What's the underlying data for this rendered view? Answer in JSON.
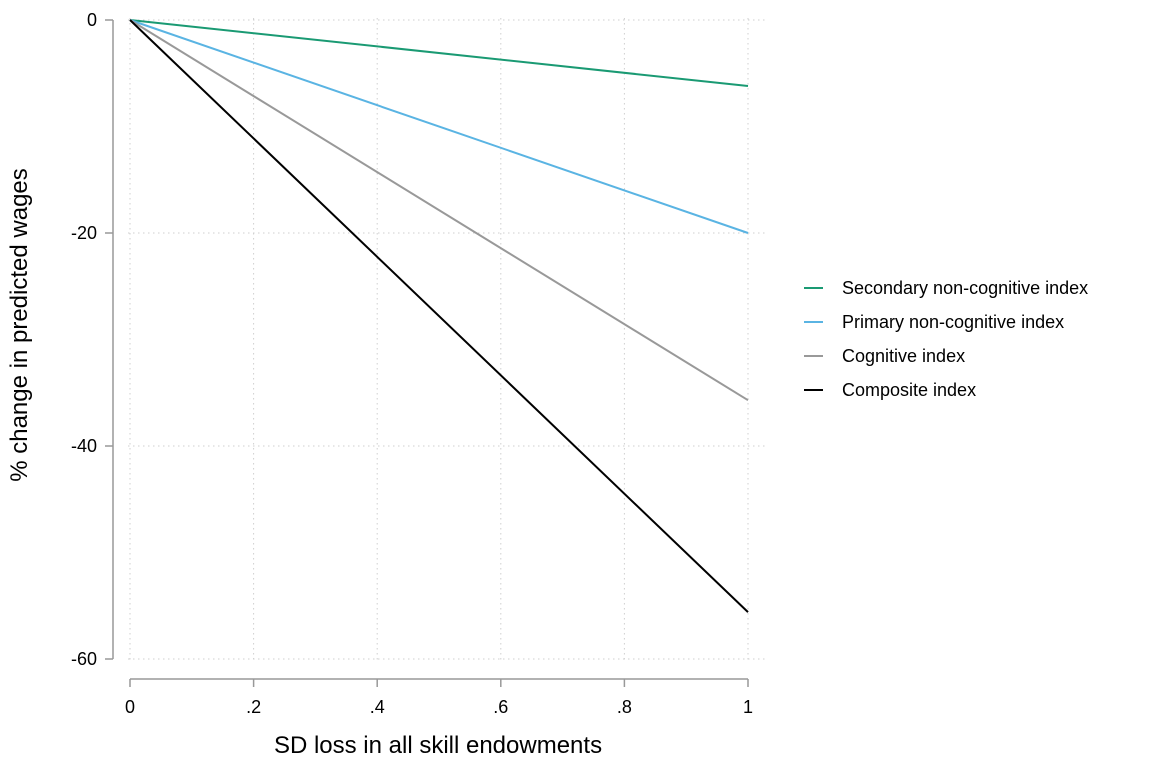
{
  "chart_data": {
    "type": "line",
    "xlabel": "SD loss in all skill endowments",
    "ylabel": "% change in predicted wages",
    "xlim": [
      0,
      1
    ],
    "ylim": [
      -60,
      0
    ],
    "xticks": [
      0,
      0.2,
      0.4,
      0.6,
      0.8,
      1
    ],
    "xtick_labels": [
      "0",
      ".2",
      ".4",
      ".6",
      ".8",
      "1"
    ],
    "yticks": [
      0,
      -20,
      -40,
      -60
    ],
    "ytick_labels": [
      "0",
      "-20",
      "-40",
      "-60"
    ],
    "grid": true,
    "legend_position": "right",
    "series": [
      {
        "name": "Secondary non-cognitive index",
        "color": "#1a9a73",
        "x": [
          0,
          1
        ],
        "y": [
          0,
          -6.2
        ]
      },
      {
        "name": "Primary non-cognitive index",
        "color": "#5ab4e3",
        "x": [
          0,
          1
        ],
        "y": [
          0,
          -20
        ]
      },
      {
        "name": "Cognitive index",
        "color": "#999999",
        "x": [
          0,
          1
        ],
        "y": [
          0,
          -35.7
        ]
      },
      {
        "name": "Composite index",
        "color": "#000000",
        "x": [
          0,
          1
        ],
        "y": [
          0,
          -55.6
        ]
      }
    ]
  }
}
